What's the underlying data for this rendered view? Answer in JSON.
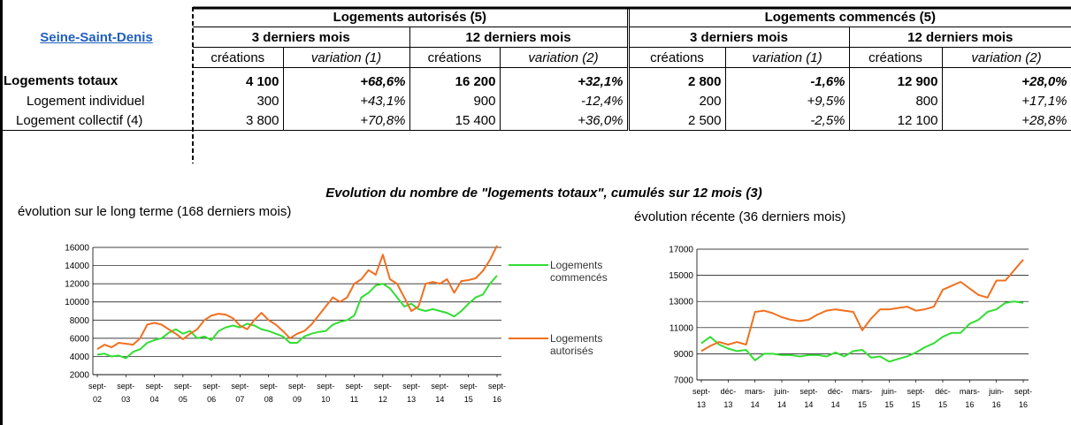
{
  "table": {
    "region": "Seine-Saint-Denis",
    "groups": [
      "Logements autorisés (5)",
      "Logements commencés (5)"
    ],
    "periods": [
      "3 derniers mois",
      "12 derniers mois",
      "3 derniers mois",
      "12 derniers mois"
    ],
    "columns": [
      "créations",
      "variation (1)",
      "créations",
      "variation (2)",
      "créations",
      "variation (1)",
      "créations",
      "variation (2)"
    ],
    "rows": [
      [
        "Logements totaux",
        "4 100",
        "+68,6%",
        "16 200",
        "+32,1%",
        "2 800",
        "-1,6%",
        "12 900",
        "+28,0%"
      ],
      [
        "Logement individuel",
        "300",
        "+43,1%",
        "900",
        "-12,4%",
        "200",
        "+9,5%",
        "800",
        "+17,1%"
      ],
      [
        "Logement collectif (4)",
        "3 800",
        "+70,8%",
        "15 400",
        "+36,0%",
        "2 500",
        "-2,5%",
        "12 100",
        "+28,8%"
      ]
    ]
  },
  "charts_title": "Evolution du nombre de \"logements totaux\", cumulés sur 12 mois (3)",
  "chart_data": [
    {
      "type": "line",
      "subtitle": "évolution sur le long terme (168 derniers mois)",
      "categories": [
        [
          "sept-",
          "02"
        ],
        null,
        null,
        null,
        [
          "sept-",
          "03"
        ],
        null,
        null,
        null,
        [
          "sept-",
          "04"
        ],
        null,
        null,
        null,
        [
          "sept-",
          "05"
        ],
        null,
        null,
        null,
        [
          "sept-",
          "06"
        ],
        null,
        null,
        null,
        [
          "sept-",
          "07"
        ],
        null,
        null,
        null,
        [
          "sept-",
          "08"
        ],
        null,
        null,
        null,
        [
          "sept-",
          "09"
        ],
        null,
        null,
        null,
        [
          "sept-",
          "10"
        ],
        null,
        null,
        null,
        [
          "sept-",
          "11"
        ],
        null,
        null,
        null,
        [
          "sept-",
          "12"
        ],
        null,
        null,
        null,
        [
          "sept-",
          "13"
        ],
        null,
        null,
        null,
        [
          "sept-",
          "14"
        ],
        null,
        null,
        null,
        [
          "sept-",
          "15"
        ],
        null,
        null,
        null,
        [
          "sept-",
          "16"
        ]
      ],
      "series": [
        {
          "name": "Logements commencés",
          "color": "#33dd33",
          "values": [
            4200,
            4300,
            4000,
            4100,
            3800,
            4500,
            4800,
            5500,
            5800,
            6000,
            6600,
            7000,
            6500,
            6800,
            6000,
            6200,
            5800,
            6800,
            7200,
            7400,
            7200,
            7600,
            7400,
            7000,
            6800,
            6500,
            6200,
            5500,
            5500,
            6200,
            6500,
            6700,
            6800,
            7500,
            7800,
            8000,
            8500,
            10500,
            11000,
            11800,
            12000,
            11500,
            10500,
            9500,
            9800,
            9200,
            9000,
            9200,
            9000,
            8800,
            8400,
            9000,
            9800,
            10500,
            10800,
            12000,
            12900
          ]
        },
        {
          "name": "Logements autorisés",
          "color": "#f07020",
          "values": [
            4800,
            5300,
            5000,
            5500,
            5400,
            5300,
            6000,
            7500,
            7700,
            7500,
            7000,
            6500,
            5900,
            6500,
            7000,
            8000,
            8500,
            8700,
            8600,
            8200,
            7400,
            7000,
            8000,
            8800,
            8000,
            7500,
            6800,
            6000,
            6500,
            6800,
            7500,
            8500,
            9500,
            10500,
            10000,
            10500,
            12000,
            12500,
            13500,
            13000,
            15200,
            12500,
            12000,
            10500,
            9000,
            9500,
            12000,
            12200,
            12000,
            12500,
            11000,
            12300,
            12400,
            12600,
            13400,
            14600,
            16200
          ]
        }
      ],
      "ylim": [
        2000,
        16000
      ],
      "yticks": [
        2000,
        4000,
        6000,
        8000,
        10000,
        12000,
        14000,
        16000
      ],
      "grid": true,
      "legend": "right"
    },
    {
      "type": "line",
      "subtitle": "évolution récente (36 derniers mois)",
      "categories": [
        [
          "sept-",
          "13"
        ],
        null,
        null,
        [
          "déc-",
          "13"
        ],
        null,
        null,
        [
          "mars-",
          "14"
        ],
        null,
        null,
        [
          "juin-",
          "14"
        ],
        null,
        null,
        [
          "sept-",
          "14"
        ],
        null,
        null,
        [
          "déc-",
          "14"
        ],
        null,
        null,
        [
          "mars-",
          "15"
        ],
        null,
        null,
        [
          "juin-",
          "15"
        ],
        null,
        null,
        [
          "sept-",
          "15"
        ],
        null,
        null,
        [
          "déc-",
          "15"
        ],
        null,
        null,
        [
          "mars-",
          "16"
        ],
        null,
        null,
        [
          "juin-",
          "16"
        ],
        null,
        null,
        [
          "sept-",
          "16"
        ]
      ],
      "series": [
        {
          "name": "Logements commencés",
          "color": "#33dd33",
          "values": [
            9800,
            10300,
            9700,
            9400,
            9200,
            9300,
            8500,
            9000,
            9000,
            8900,
            8900,
            8800,
            8900,
            8900,
            8800,
            9100,
            8800,
            9200,
            9300,
            8700,
            8800,
            8400,
            8600,
            8800,
            9100,
            9500,
            9800,
            10300,
            10600,
            10600,
            11300,
            11600,
            12200,
            12400,
            12900,
            13000,
            12900
          ]
        },
        {
          "name": "Logements autorisés",
          "color": "#f07020",
          "values": [
            9200,
            9600,
            9900,
            9700,
            9900,
            9700,
            12200,
            12300,
            12100,
            11800,
            11600,
            11500,
            11600,
            12000,
            12300,
            12400,
            12300,
            12200,
            10800,
            11700,
            12400,
            12400,
            12500,
            12600,
            12300,
            12400,
            12600,
            13900,
            14200,
            14500,
            14000,
            13500,
            13300,
            14600,
            14600,
            15400,
            16200
          ]
        }
      ],
      "ylim": [
        7000,
        17000
      ],
      "yticks": [
        7000,
        9000,
        11000,
        13000,
        15000,
        17000
      ],
      "grid": true,
      "legend": "none"
    }
  ]
}
